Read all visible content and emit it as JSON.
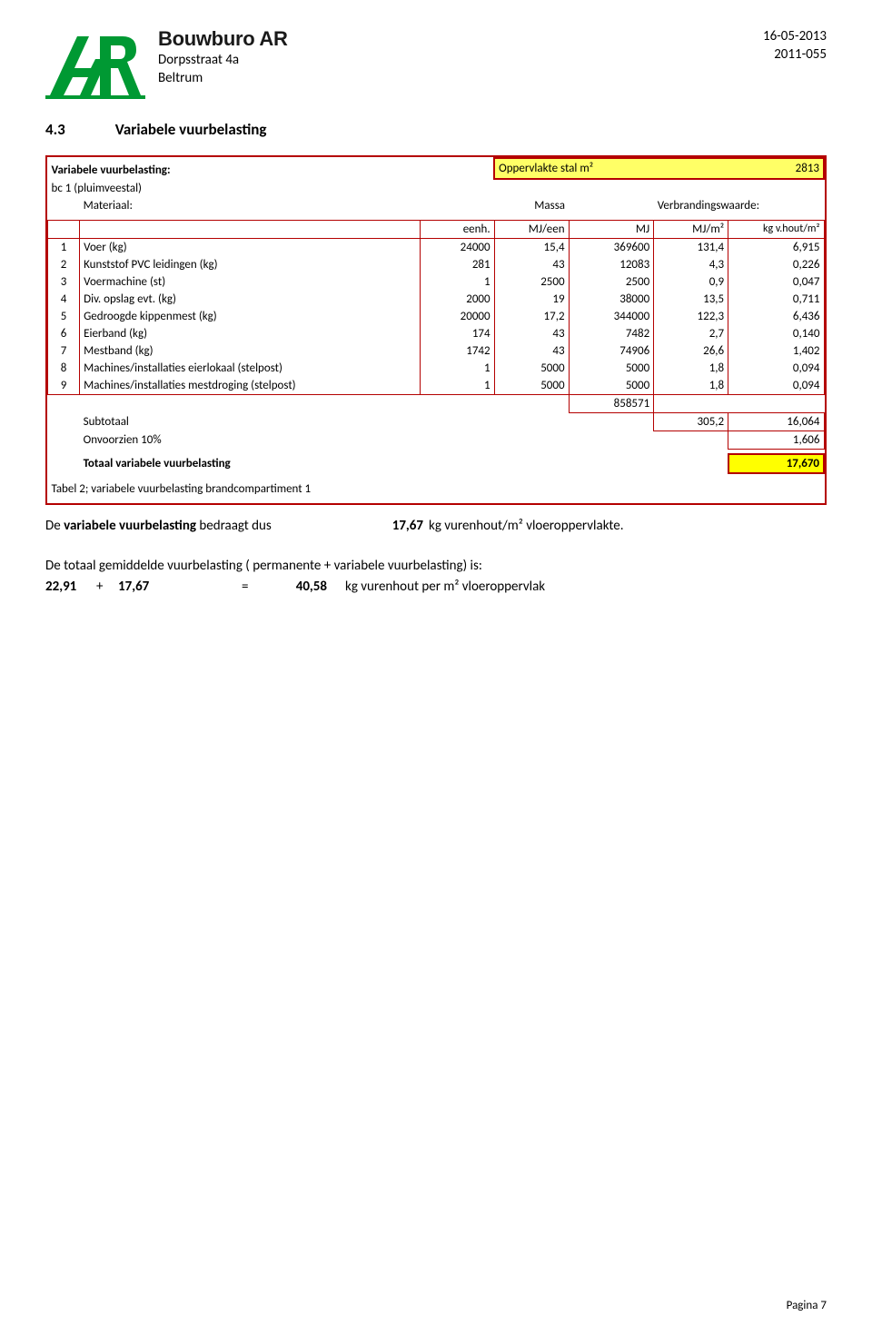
{
  "header": {
    "company_name": "Bouwburo AR",
    "address": "Dorpsstraat 4a",
    "city": "Beltrum",
    "date": "16-05-2013",
    "project_no": "2011-055"
  },
  "section": {
    "num": "4.3",
    "title": "Variabele vuurbelasting"
  },
  "panel": {
    "title_label": "Variabele vuurbelasting:",
    "subtitle": "bc 1 (pluimveestal)",
    "opp_label": "Oppervlakte stal m²",
    "opp_value": "2813",
    "materiaal_label": "Materiaal:",
    "massa_label": "Massa",
    "verbr_label": "Verbrandingswaarde:"
  },
  "cols": {
    "eenh": "eenh.",
    "mjeen": "MJ/een",
    "mj": "MJ",
    "mjm2": "MJ/m²",
    "kgv": "kg v.hout/m²"
  },
  "rows": [
    {
      "idx": "1",
      "label": "Voer (kg)",
      "eenh": "24000",
      "mjeen": "15,4",
      "mj": "369600",
      "mjm2": "131,4",
      "kgv": "6,915"
    },
    {
      "idx": "2",
      "label": "Kunststof PVC leidingen (kg)",
      "eenh": "281",
      "mjeen": "43",
      "mj": "12083",
      "mjm2": "4,3",
      "kgv": "0,226"
    },
    {
      "idx": "3",
      "label": "Voermachine (st)",
      "eenh": "1",
      "mjeen": "2500",
      "mj": "2500",
      "mjm2": "0,9",
      "kgv": "0,047"
    },
    {
      "idx": "4",
      "label": "Div. opslag evt. (kg)",
      "eenh": "2000",
      "mjeen": "19",
      "mj": "38000",
      "mjm2": "13,5",
      "kgv": "0,711"
    },
    {
      "idx": "5",
      "label": "Gedroogde kippenmest (kg)",
      "eenh": "20000",
      "mjeen": "17,2",
      "mj": "344000",
      "mjm2": "122,3",
      "kgv": "6,436"
    },
    {
      "idx": "6",
      "label": "Eierband (kg)",
      "eenh": "174",
      "mjeen": "43",
      "mj": "7482",
      "mjm2": "2,7",
      "kgv": "0,140"
    },
    {
      "idx": "7",
      "label": "Mestband (kg)",
      "eenh": "1742",
      "mjeen": "43",
      "mj": "74906",
      "mjm2": "26,6",
      "kgv": "1,402"
    },
    {
      "idx": "8",
      "label": "Machines/installaties eierlokaal (stelpost)",
      "eenh": "1",
      "mjeen": "5000",
      "mj": "5000",
      "mjm2": "1,8",
      "kgv": "0,094"
    },
    {
      "idx": "9",
      "label": "Machines/installaties mestdroging (stelpost)",
      "eenh": "1",
      "mjeen": "5000",
      "mj": "5000",
      "mjm2": "1,8",
      "kgv": "0,094"
    }
  ],
  "totals": {
    "mj_sum": "858571",
    "sub_label": "Subtotaal",
    "sub_mjm2": "305,2",
    "sub_kgv": "16,064",
    "onv_label": "Onvoorzien 10%",
    "onv_kgv": "1,606",
    "tot_label": "Totaal variabele vuurbelasting",
    "tot_kgv": "17,670"
  },
  "caption": "Tabel 2; variabele vuurbelasting brandcompartiment 1",
  "statement": {
    "pre": "De ",
    "bold": "variabele vuurbelasting ",
    "mid": "bedraagt dus",
    "val": "17,67",
    "unit": "kg vurenhout/m² vloeroppervlakte."
  },
  "summary": {
    "line1": "De totaal gemiddelde vuurbelasting ( permanente + variabele vuurbelasting) is:",
    "a": "22,91",
    "plus": "+",
    "b": "17,67",
    "eq": "=",
    "c": "40,58",
    "unit": "kg vurenhout per m² vloeroppervlak"
  },
  "page_no": "Pagina 7",
  "colors": {
    "accent": "#009933",
    "border": "#b40000",
    "hl": "#ffff66",
    "hl2": "#ffff00"
  }
}
